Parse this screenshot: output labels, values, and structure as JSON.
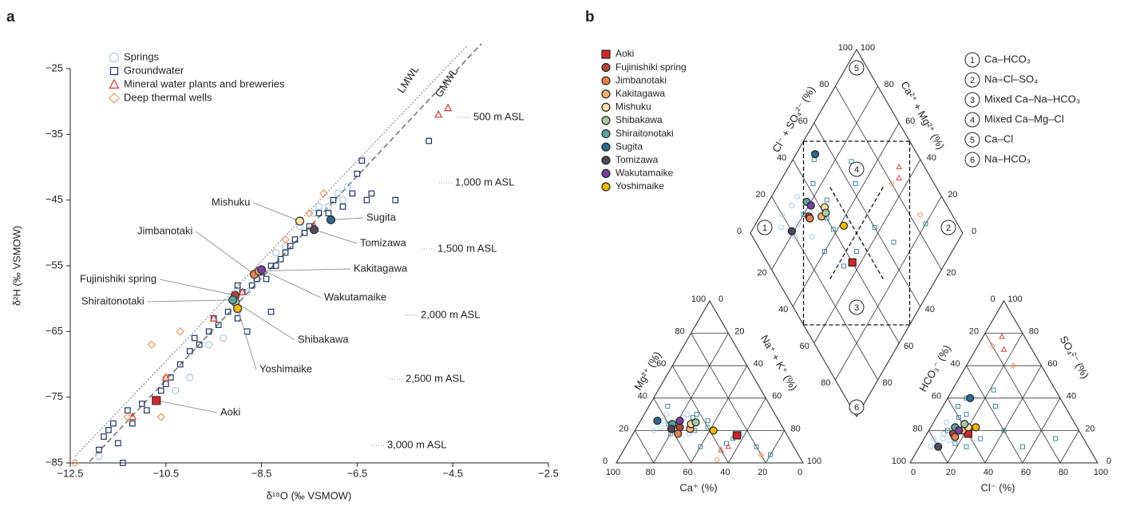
{
  "chart_data": [
    {
      "type": "scatter",
      "panel": "a",
      "xlabel": "δ¹⁸O (‰ VSMOW)",
      "ylabel": "δ²H (‰ VSMOW)",
      "xlim": [
        -12.5,
        -2.5
      ],
      "ylim": [
        -85,
        -25
      ],
      "xticks": [
        {
          "value": -12.5,
          "label": "−12.5"
        },
        {
          "value": -10.5,
          "label": "−10.5"
        },
        {
          "value": -8.5,
          "label": "−8.5"
        },
        {
          "value": -6.5,
          "label": "−6.5"
        },
        {
          "value": -4.5,
          "label": "−4.5"
        },
        {
          "value": -2.5,
          "label": "−2.5"
        }
      ],
      "yticks": [
        {
          "value": -85,
          "label": "−85"
        },
        {
          "value": -75,
          "label": "−75"
        },
        {
          "value": -65,
          "label": "−65"
        },
        {
          "value": -55,
          "label": "−55"
        },
        {
          "value": -45,
          "label": "−45"
        },
        {
          "value": -35,
          "label": "−35"
        },
        {
          "value": -25,
          "label": "−25"
        }
      ],
      "series": [
        {
          "name": "Springs",
          "color": "#a8c9e8",
          "marker": "circle",
          "x": [
            -11.9,
            -10.3,
            -10.0,
            -9.6,
            -9.3,
            -9.0,
            -8.8,
            -8.6,
            -8.2,
            -8.0,
            -7.7,
            -7.4,
            -7.1,
            -6.9,
            -6.7,
            -6.8,
            -7.3
          ],
          "y": [
            -84,
            -74,
            -72,
            -67,
            -66,
            -62,
            -59,
            -57,
            -53,
            -52,
            -49,
            -47,
            -46,
            -44,
            -43,
            -45,
            -46
          ]
        },
        {
          "name": "Groundwater",
          "color": "#1f3563",
          "marker": "square",
          "x": [
            -11.9,
            -11.8,
            -11.7,
            -11.6,
            -11.5,
            -11.3,
            -11.2,
            -11.0,
            -10.9,
            -10.6,
            -10.4,
            -10.2,
            -10.0,
            -9.9,
            -9.8,
            -9.6,
            -9.5,
            -9.4,
            -9.2,
            -9.0,
            -8.9,
            -8.8,
            -8.7,
            -8.6,
            -8.5,
            -8.4,
            -8.3,
            -8.2,
            -8.1,
            -8.0,
            -7.9,
            -7.8,
            -7.6,
            -7.5,
            -7.3,
            -7.1,
            -7.0,
            -6.8,
            -6.6,
            -6.5,
            -6.4,
            -6.3,
            -6.2,
            -5.7,
            -5.0,
            -8.3,
            -9.0,
            -10.5,
            -11.4
          ],
          "y": [
            -83,
            -81,
            -80,
            -79,
            -82,
            -77,
            -79,
            -76,
            -77,
            -74,
            -72,
            -70,
            -68,
            -66,
            -67,
            -65,
            -63,
            -64,
            -62,
            -63,
            -59,
            -65,
            -58,
            -57,
            -56,
            -57,
            -55,
            -55,
            -54,
            -53,
            -52,
            -51,
            -50,
            -49,
            -47,
            -47,
            -45,
            -46,
            -44,
            -41,
            -39,
            -45,
            -44,
            -45,
            -36,
            -62,
            -58,
            -73,
            -85
          ]
        },
        {
          "name": "Mineral water plants and breweries",
          "color": "#e0312b",
          "marker": "triangle",
          "x": [
            -4.8,
            -4.6,
            -11.2,
            -10.5,
            -9.5,
            -8.9,
            -7.4
          ],
          "y": [
            -32,
            -31,
            -78,
            -72,
            -63,
            -59,
            -49
          ]
        },
        {
          "name": "Deep thermal wells",
          "color": "#f0955a",
          "marker": "diamond",
          "x": [
            -12.4,
            -11.3,
            -10.6,
            -10.8,
            -10.5,
            -8.0,
            -7.2,
            -7.5,
            -10.2
          ],
          "y": [
            -85,
            -78,
            -78,
            -67,
            -72,
            -51,
            -44,
            -47,
            -65
          ]
        }
      ],
      "lines": [
        {
          "name": "LMWL",
          "color": "#a8a8a8",
          "style": "dotted",
          "x": [
            -12.4,
            -4.2
          ],
          "y": [
            -84,
            -21.5
          ]
        },
        {
          "name": "GMWL",
          "color": "#777777",
          "style": "dashed",
          "x": [
            -12.1,
            -3.9
          ],
          "y": [
            -84.8,
            -21.2
          ]
        }
      ],
      "altitude_labels": [
        "500 m ASL",
        "1,000 m ASL",
        "1,500 m ASL",
        "2,000 m ASL",
        "2,500 m ASL",
        "3,000 m ASL"
      ],
      "sites": [
        {
          "name": "Aoki",
          "color": "#d7262b",
          "marker": "square",
          "x": -10.7,
          "y": -75.5
        },
        {
          "name": "Fujinishiki spring",
          "color": "#b5473a",
          "marker": "circle",
          "x": -9.05,
          "y": -59.5
        },
        {
          "name": "Jimbanotaki",
          "color": "#e9814c",
          "marker": "circle",
          "x": -8.65,
          "y": -56.3
        },
        {
          "name": "Kakitagawa",
          "color": "#f5b26b",
          "marker": "circle",
          "x": -8.55,
          "y": -55.8
        },
        {
          "name": "Mishuku",
          "color": "#f8e2a2",
          "marker": "circle",
          "x": -7.7,
          "y": -48.2
        },
        {
          "name": "Shibakawa",
          "color": "#a9c9a4",
          "marker": "circle",
          "x": -9.05,
          "y": -60.5
        },
        {
          "name": "Shiraitonotaki",
          "color": "#5aa49b",
          "marker": "circle",
          "x": -9.1,
          "y": -60.2
        },
        {
          "name": "Sugita",
          "color": "#2b6a8f",
          "marker": "circle",
          "x": -7.05,
          "y": -48
        },
        {
          "name": "Tomizawa",
          "color": "#4d4a5a",
          "marker": "circle",
          "x": -7.4,
          "y": -49.5
        },
        {
          "name": "Wakutamaike",
          "color": "#7b3fa0",
          "marker": "circle",
          "x": -8.5,
          "y": -55.6
        },
        {
          "name": "Yoshimaike",
          "color": "#f5b800",
          "marker": "circle",
          "x": -9.0,
          "y": -61.5
        }
      ]
    },
    {
      "type": "piper",
      "panel": "b",
      "ticks": [
        0,
        20,
        40,
        60,
        80,
        100
      ],
      "cation_labels": {
        "ca": "Ca⁺ (%)",
        "mg": "Mg²⁺ (%)",
        "na": "Na⁺ + K⁺ (%)"
      },
      "anion_labels": {
        "cl": "Cl⁻ (%)",
        "so4": "SO₄²⁻ (%)",
        "hco3": "HCO₃⁻ (%)"
      },
      "diamond_labels": {
        "cs": "Cl⁻ + SO₄²⁻ (%)",
        "cm": "Ca²⁺ + Mg²⁺ (%)"
      },
      "water_types": [
        {
          "number": "1",
          "label": "Ca–HCO₃"
        },
        {
          "number": "2",
          "label": "Na–Cl–SO₄"
        },
        {
          "number": "3",
          "label": "Mixed Ca–Na–HCO₃"
        },
        {
          "number": "4",
          "label": "Mixed Ca–Mg–Cl"
        },
        {
          "number": "5",
          "label": "Ca–Cl"
        },
        {
          "number": "6",
          "label": "Na–HCO₃"
        }
      ],
      "samples": [
        {
          "color": "#a8c9e8",
          "marker": "circle",
          "points": [
            [
              55,
              25,
              10,
              15
            ],
            [
              60,
              20,
              8,
              12
            ],
            [
              50,
              28,
              12,
              20
            ],
            [
              65,
              22,
              6,
              10
            ],
            [
              58,
              30,
              9,
              18
            ],
            [
              52,
              18,
              14,
              14
            ],
            [
              62,
              26,
              7,
              25
            ],
            [
              47,
              30,
              12,
              22
            ],
            [
              70,
              20,
              5,
              15
            ],
            [
              56,
              22,
              11,
              9
            ]
          ]
        },
        {
          "color": "#2e7f95",
          "marker": "square",
          "points": [
            [
              45,
              28,
              15,
              30
            ],
            [
              40,
              22,
              20,
              20
            ],
            [
              35,
              12,
              25,
              10
            ],
            [
              55,
              35,
              10,
              40
            ],
            [
              30,
              15,
              30,
              15
            ],
            [
              60,
              24,
              8,
              35
            ],
            [
              25,
              18,
              40,
              20
            ],
            [
              50,
              10,
              18,
              12
            ],
            [
              42,
              30,
              22,
              45
            ],
            [
              20,
              10,
              55,
              10
            ],
            [
              48,
              20,
              12,
              28
            ],
            [
              38,
              26,
              28,
              35
            ],
            [
              15,
              5,
              70,
              15
            ],
            [
              62,
              18,
              10,
              20
            ]
          ]
        },
        {
          "color": "#e0312b",
          "marker": "triangle",
          "points": [
            [
              35,
              10,
              15,
              70
            ],
            [
              40,
              8,
              10,
              78
            ]
          ]
        },
        {
          "color": "#f0955a",
          "marker": "diamond",
          "points": [
            [
              20,
              5,
              25,
              60
            ],
            [
              45,
              2,
              8,
              72
            ]
          ]
        }
      ],
      "sites": [
        {
          "name": "Aoki",
          "color": "#d7262b",
          "marker": "square",
          "ca": 27,
          "mg": 17,
          "cl": 22,
          "so4": 18
        },
        {
          "name": "Fujinishiki spring",
          "color": "#b5473a",
          "marker": "circle",
          "ca": 55,
          "mg": 22,
          "cl": 14,
          "so4": 18
        },
        {
          "name": "Jimbanotaki",
          "color": "#e9814c",
          "marker": "circle",
          "ca": 58,
          "mg": 18,
          "cl": 16,
          "so4": 16
        },
        {
          "name": "Kakitagawa",
          "color": "#f5b26b",
          "marker": "circle",
          "ca": 50,
          "mg": 21,
          "cl": 18,
          "so4": 20
        },
        {
          "name": "Mishuku",
          "color": "#f8e2a2",
          "marker": "circle",
          "ca": 48,
          "mg": 24,
          "cl": 20,
          "so4": 22
        },
        {
          "name": "Shibakawa",
          "color": "#a9c9a4",
          "marker": "circle",
          "ca": 45,
          "mg": 25,
          "cl": 17,
          "so4": 24
        },
        {
          "name": "Shiraitonotaki",
          "color": "#5aa49b",
          "marker": "circle",
          "ca": 58,
          "mg": 24,
          "cl": 13,
          "so4": 22
        },
        {
          "name": "Sugita",
          "color": "#2b6a8f",
          "marker": "circle",
          "ca": 65,
          "mg": 26,
          "cl": 12,
          "so4": 40
        },
        {
          "name": "Tomizawa",
          "color": "#4d4a5a",
          "marker": "circle",
          "ca": 60,
          "mg": 21,
          "cl": 10,
          "so4": 10
        },
        {
          "name": "Wakutamaike",
          "color": "#7b3fa0",
          "marker": "circle",
          "ca": 53,
          "mg": 26,
          "cl": 16,
          "so4": 20
        },
        {
          "name": "Yoshimaike",
          "color": "#f5b800",
          "marker": "circle",
          "ca": 38,
          "mg": 20,
          "cl": 24,
          "so4": 22
        }
      ]
    }
  ]
}
